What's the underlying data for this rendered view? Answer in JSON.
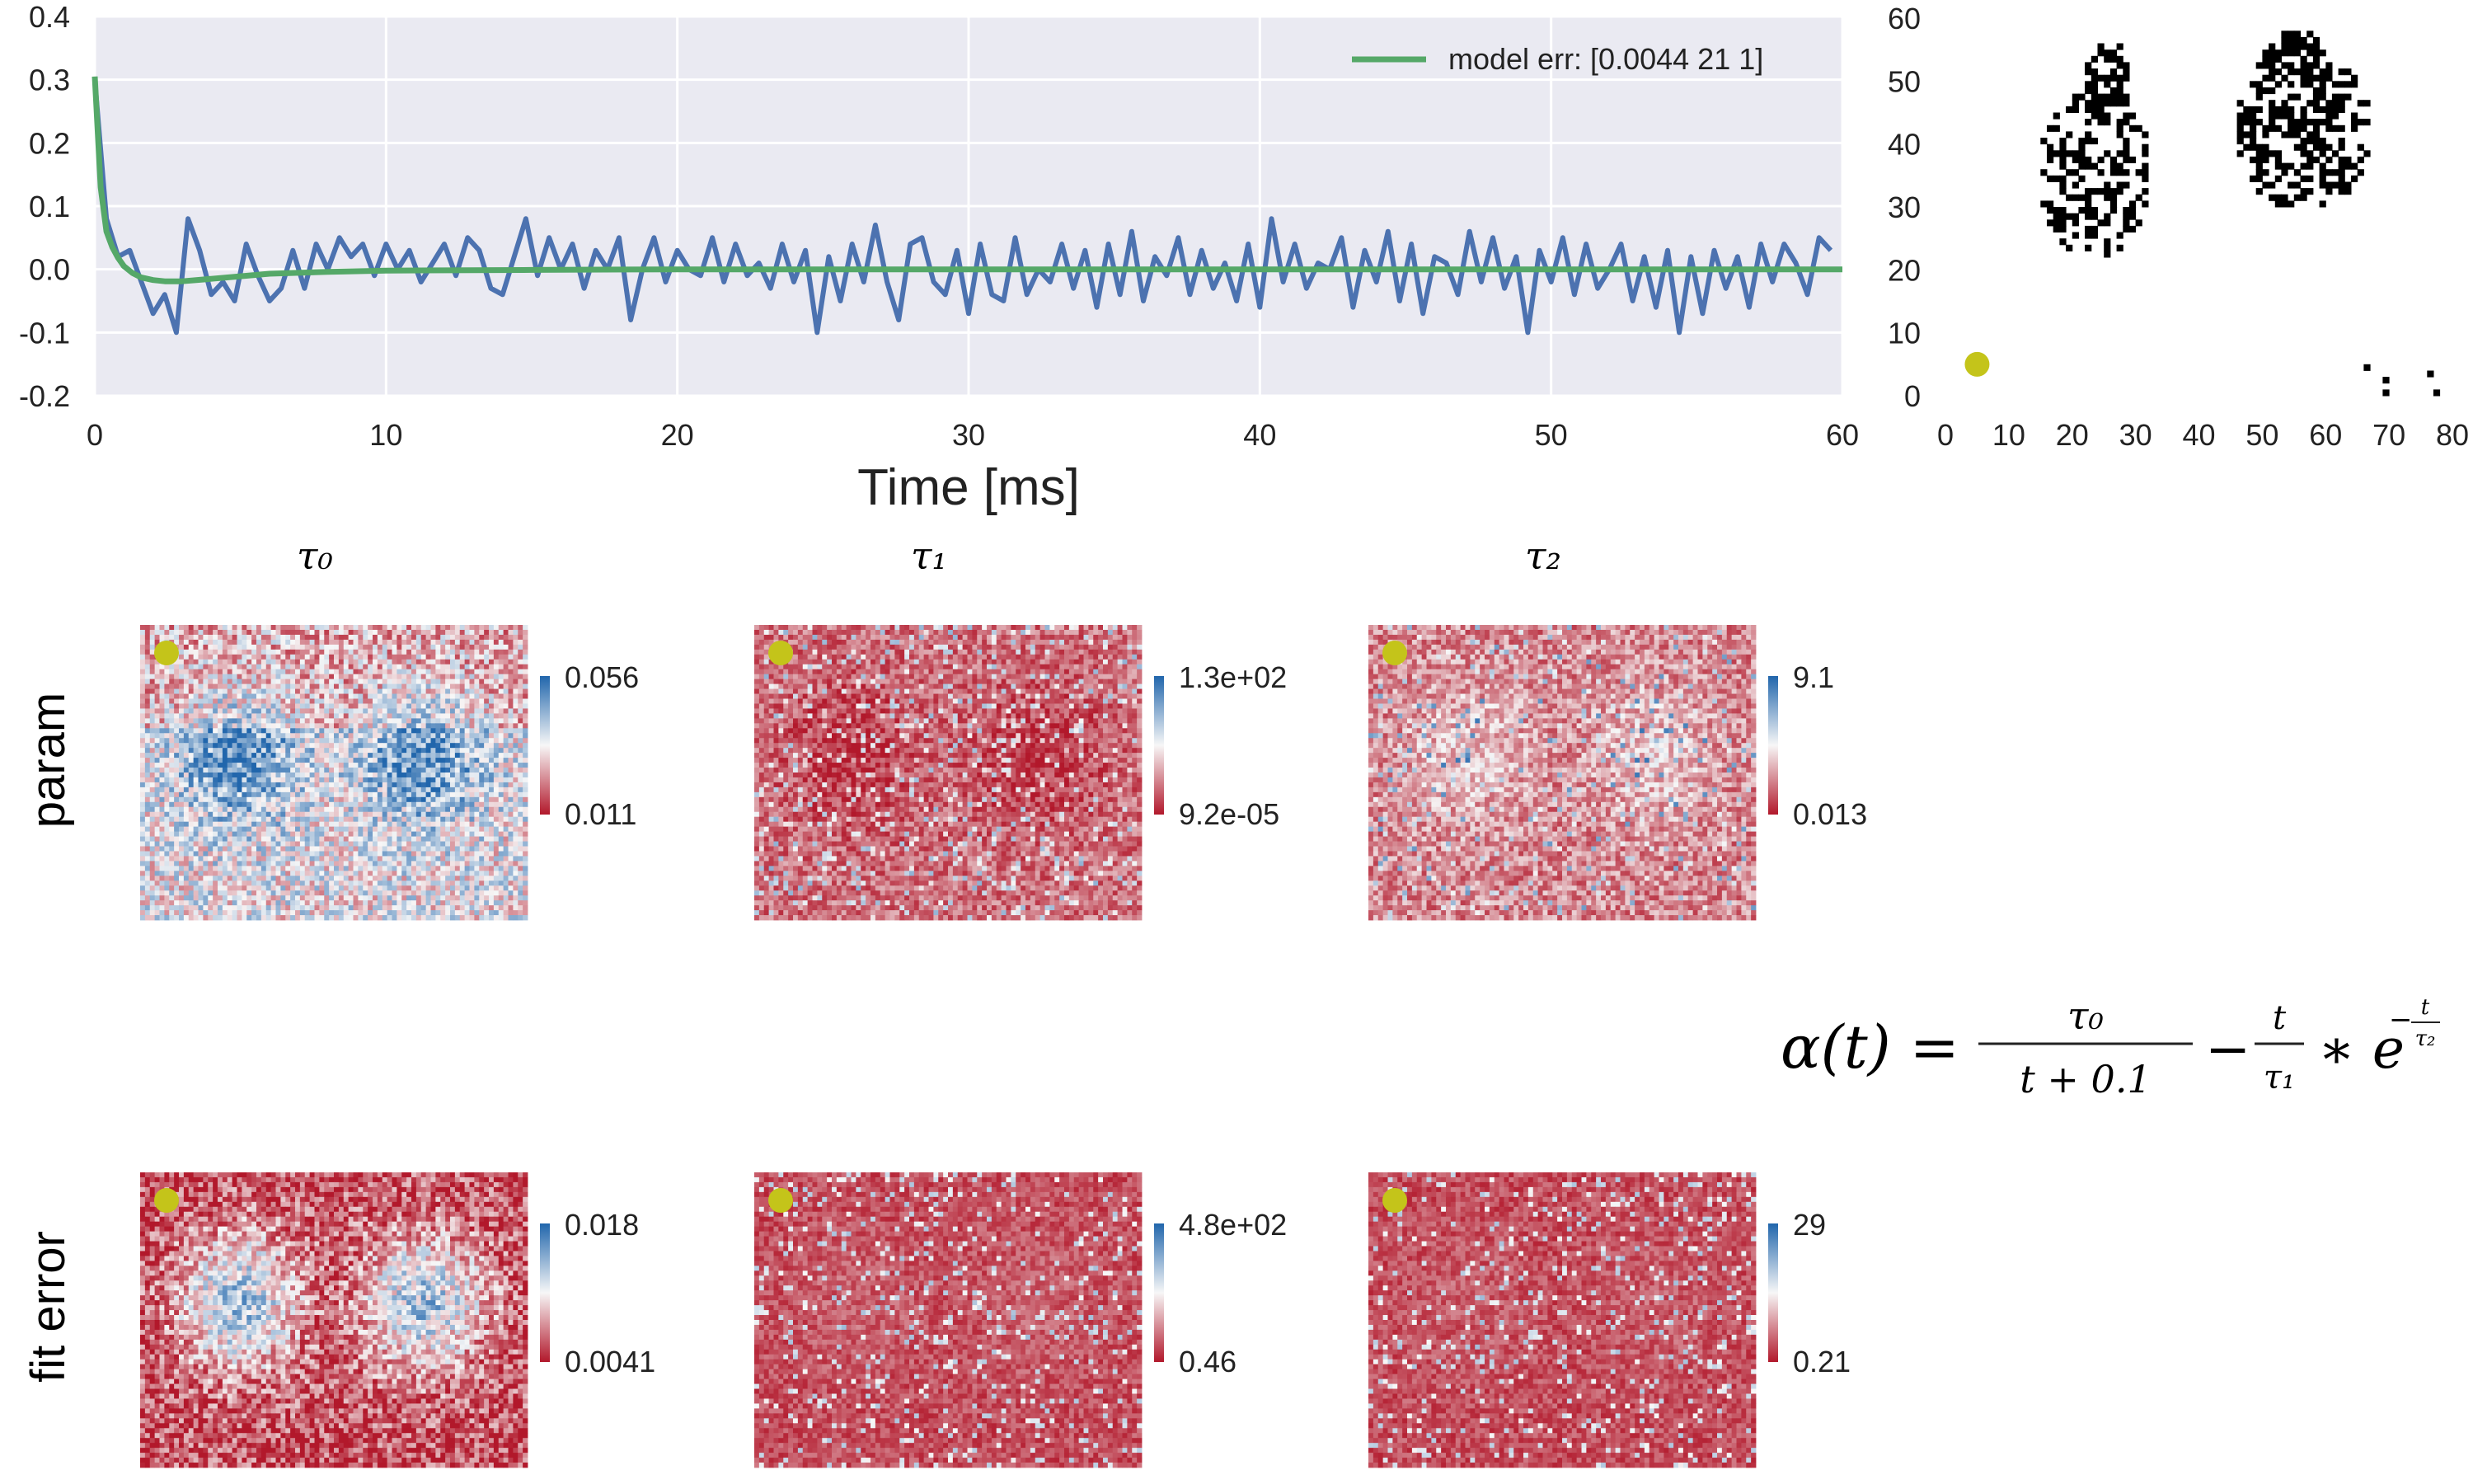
{
  "chart_data": [
    {
      "id": "trace",
      "type": "line",
      "title": "",
      "xlabel": "Time [ms]",
      "ylabel": "",
      "xlim": [
        0,
        60
      ],
      "ylim": [
        -0.2,
        0.4
      ],
      "xticks": [
        "0",
        "10",
        "20",
        "30",
        "40",
        "50",
        "60"
      ],
      "yticks": [
        "-0.2",
        "-0.1",
        "0.0",
        "0.1",
        "0.2",
        "0.3",
        "0.4"
      ],
      "grid": true,
      "legend": "top-right",
      "colors": {
        "data": "#4c72b0",
        "model": "#55a868",
        "background": "#eaeaf2"
      },
      "series": [
        {
          "name": "",
          "x": [
            0.0,
            0.4,
            0.8,
            1.2,
            1.6,
            2.0,
            2.4,
            2.8,
            3.2,
            3.6,
            4.0,
            4.4,
            4.8,
            5.2,
            5.6,
            6.0,
            6.4,
            6.8,
            7.2,
            7.6,
            8.0,
            8.4,
            8.8,
            9.2,
            9.6,
            10.0,
            10.4,
            10.8,
            11.2,
            11.6,
            12.0,
            12.4,
            12.8,
            13.2,
            13.6,
            14.0,
            14.4,
            14.8,
            15.2,
            15.6,
            16.0,
            16.4,
            16.8,
            17.2,
            17.6,
            18.0,
            18.4,
            18.8,
            19.2,
            19.6,
            20.0,
            20.4,
            20.8,
            21.2,
            21.6,
            22.0,
            22.4,
            22.8,
            23.2,
            23.6,
            24.0,
            24.4,
            24.8,
            25.2,
            25.6,
            26.0,
            26.4,
            26.8,
            27.2,
            27.6,
            28.0,
            28.4,
            28.8,
            29.2,
            29.6,
            30.0,
            30.4,
            30.8,
            31.2,
            31.6,
            32.0,
            32.4,
            32.8,
            33.2,
            33.6,
            34.0,
            34.4,
            34.8,
            35.2,
            35.6,
            36.0,
            36.4,
            36.8,
            37.2,
            37.6,
            38.0,
            38.4,
            38.8,
            39.2,
            39.6,
            40.0,
            40.4,
            40.8,
            41.2,
            41.6,
            42.0,
            42.4,
            42.8,
            43.2,
            43.6,
            44.0,
            44.4,
            44.8,
            45.2,
            45.6,
            46.0,
            46.4,
            46.8,
            47.2,
            47.6,
            48.0,
            48.4,
            48.8,
            49.2,
            49.6,
            50.0,
            50.4,
            50.8,
            51.2,
            51.6,
            52.0,
            52.4,
            52.8,
            53.2,
            53.6,
            54.0,
            54.4,
            54.8,
            55.2,
            55.6,
            56.0,
            56.4,
            56.8,
            57.2,
            57.6,
            58.0,
            58.4,
            58.8,
            59.2,
            59.6
          ],
          "y": [
            0.3,
            0.08,
            0.02,
            0.03,
            -0.02,
            -0.07,
            -0.04,
            -0.1,
            0.08,
            0.03,
            -0.04,
            -0.02,
            -0.05,
            0.04,
            -0.01,
            -0.05,
            -0.03,
            0.03,
            -0.03,
            0.04,
            0.0,
            0.05,
            0.02,
            0.04,
            -0.01,
            0.04,
            0.0,
            0.03,
            -0.02,
            0.01,
            0.04,
            -0.01,
            0.05,
            0.03,
            -0.03,
            -0.04,
            0.02,
            0.08,
            -0.01,
            0.05,
            0.0,
            0.04,
            -0.03,
            0.03,
            0.0,
            0.05,
            -0.08,
            0.0,
            0.05,
            -0.02,
            0.03,
            0.0,
            -0.01,
            0.05,
            -0.02,
            0.04,
            -0.01,
            0.01,
            -0.03,
            0.04,
            -0.02,
            0.03,
            -0.1,
            0.02,
            -0.05,
            0.04,
            -0.02,
            0.07,
            -0.02,
            -0.08,
            0.04,
            0.05,
            -0.02,
            -0.04,
            0.03,
            -0.07,
            0.04,
            -0.04,
            -0.05,
            0.05,
            -0.04,
            0.0,
            -0.02,
            0.04,
            -0.03,
            0.03,
            -0.06,
            0.04,
            -0.04,
            0.06,
            -0.05,
            0.02,
            -0.01,
            0.05,
            -0.04,
            0.03,
            -0.03,
            0.01,
            -0.05,
            0.04,
            -0.06,
            0.08,
            -0.02,
            0.04,
            -0.03,
            0.01,
            0.0,
            0.05,
            -0.06,
            0.03,
            -0.02,
            0.06,
            -0.05,
            0.04,
            -0.07,
            0.02,
            0.01,
            -0.04,
            0.06,
            -0.02,
            0.05,
            -0.03,
            0.02,
            -0.1,
            0.03,
            -0.02,
            0.05,
            -0.04,
            0.04,
            -0.03,
            0.0,
            0.04,
            -0.05,
            0.02,
            -0.06,
            0.03,
            -0.1,
            0.02,
            -0.07,
            0.03,
            -0.03,
            0.02,
            -0.06,
            0.04,
            -0.02,
            0.04,
            0.01,
            -0.04,
            0.05,
            0.03
          ]
        },
        {
          "name": "model err: [0.0044 21 1]",
          "x": [
            0.0,
            0.2,
            0.4,
            0.6,
            0.8,
            1.0,
            1.3,
            1.6,
            2.0,
            2.4,
            3.0,
            4.0,
            5.0,
            6.0,
            8.0,
            10.0,
            15.0,
            20.0,
            30.0,
            40.0,
            50.0,
            60.0
          ],
          "y": [
            0.305,
            0.13,
            0.06,
            0.035,
            0.018,
            0.005,
            -0.006,
            -0.013,
            -0.017,
            -0.019,
            -0.019,
            -0.015,
            -0.011,
            -0.007,
            -0.004,
            -0.002,
            -0.001,
            0.0,
            0.0,
            0.0,
            0.0,
            0.0
          ]
        }
      ]
    },
    {
      "id": "mask",
      "type": "heatmap",
      "title": "",
      "xlim": [
        0,
        80
      ],
      "ylim": [
        0,
        60
      ],
      "xticks": [
        "0",
        "10",
        "20",
        "30",
        "40",
        "50",
        "60",
        "70",
        "80"
      ],
      "yticks": [
        "0",
        "10",
        "20",
        "30",
        "40",
        "50",
        "60"
      ],
      "marker": {
        "x": 5,
        "y": 5,
        "color": "#c4c41a"
      },
      "colors": {
        "on": "#000000",
        "off": "#ffffff"
      }
    },
    {
      "id": "maps",
      "type": "heatmap",
      "column_titles": [
        "τ₀",
        "τ₁",
        "τ₂"
      ],
      "row_labels": [
        "param",
        "fit error"
      ],
      "colormap": {
        "high": "#2166ac",
        "mid": "#f7f7f7",
        "low": "#b2182b"
      },
      "panels": [
        {
          "row": 0,
          "col": 0,
          "cbar_max": "0.056",
          "cbar_min": "0.011",
          "pattern": "tau0_param"
        },
        {
          "row": 0,
          "col": 1,
          "cbar_max": "1.3e+02",
          "cbar_min": "9.2e-05",
          "pattern": "tau1_param"
        },
        {
          "row": 0,
          "col": 2,
          "cbar_max": "9.1",
          "cbar_min": "0.013",
          "pattern": "tau2_param"
        },
        {
          "row": 1,
          "col": 0,
          "cbar_max": "0.018",
          "cbar_min": "0.0041",
          "pattern": "tau0_err"
        },
        {
          "row": 1,
          "col": 1,
          "cbar_max": "4.8e+02",
          "cbar_min": "0.46",
          "pattern": "tau1_err"
        },
        {
          "row": 1,
          "col": 2,
          "cbar_max": "29",
          "cbar_min": "0.21",
          "pattern": "tau2_err"
        }
      ],
      "marker_color": "#c4c41a"
    }
  ],
  "formula": {
    "lhs": "α(t) =",
    "frac1_num": "τ₀",
    "frac1_den": "t + 0.1",
    "minus": "−",
    "frac2_num": "t",
    "frac2_den": "τ₁",
    "times": "∗ e",
    "exp_sign": "−",
    "exp_num": "t",
    "exp_den": "τ₂"
  }
}
